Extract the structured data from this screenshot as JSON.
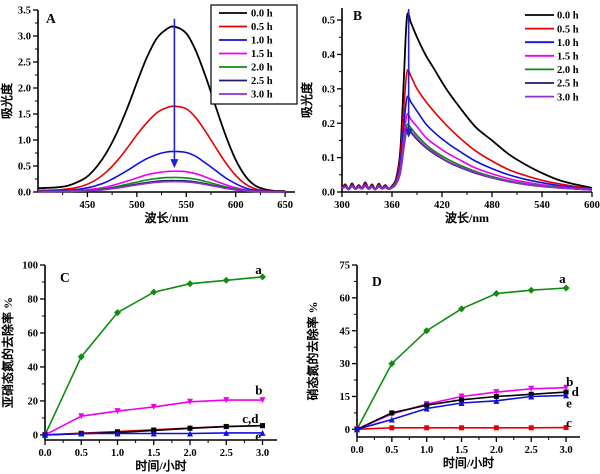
{
  "figure": {
    "background": "#ffffff",
    "arrow_color": "#2222cc",
    "axis_color": "#000000"
  },
  "chart_data": [
    {
      "id": "A",
      "type": "line",
      "panel_label": "A",
      "xlabel": "波长/nm",
      "ylabel": "吸光度",
      "xlim": [
        400,
        660
      ],
      "ylim": [
        0,
        3.5
      ],
      "xticks": {
        "major": [
          450,
          500,
          550,
          600,
          650
        ],
        "labels": [
          "450",
          "500",
          "550",
          "600",
          "650"
        ],
        "minor": [
          425,
          475,
          525,
          575,
          625
        ]
      },
      "yticks": {
        "major": [
          0,
          0.5,
          1,
          1.5,
          2,
          2.5,
          3,
          3.5
        ],
        "labels": [
          "0.0",
          "0.5",
          "1.0",
          "1.5",
          "2.0",
          "2.5",
          "3.0",
          "3.5"
        ],
        "minor": [
          0.25,
          0.75,
          1.25,
          1.75,
          2.25,
          2.75,
          3.25
        ]
      },
      "legend": {
        "show": true,
        "border": true
      },
      "arrow": {
        "x": 538,
        "y_from": 3.33,
        "y_to": 0.46
      },
      "smooth": true,
      "x": [
        400,
        410,
        420,
        430,
        440,
        450,
        460,
        470,
        480,
        490,
        500,
        510,
        520,
        530,
        538,
        550,
        560,
        570,
        580,
        590,
        600,
        610,
        620,
        630,
        640,
        650
      ],
      "series": [
        {
          "name": "0.0 h",
          "color": "#000000",
          "marker": null,
          "y": [
            0.075,
            0.08,
            0.09,
            0.12,
            0.19,
            0.3,
            0.5,
            0.78,
            1.15,
            1.6,
            2.1,
            2.58,
            2.95,
            3.13,
            3.18,
            3.05,
            2.7,
            2.2,
            1.63,
            1.08,
            0.62,
            0.3,
            0.12,
            0.05,
            0.02,
            0.02
          ]
        },
        {
          "name": "0.5 h",
          "color": "#e80000",
          "marker": null,
          "y": [
            0.033,
            0.035,
            0.04,
            0.06,
            0.09,
            0.15,
            0.25,
            0.4,
            0.6,
            0.84,
            1.1,
            1.33,
            1.52,
            1.62,
            1.65,
            1.6,
            1.42,
            1.15,
            0.85,
            0.56,
            0.32,
            0.15,
            0.06,
            0.025,
            0.012,
            0.01
          ]
        },
        {
          "name": "1.0 h",
          "color": "#1010dd",
          "marker": null,
          "y": [
            0.019,
            0.02,
            0.025,
            0.035,
            0.05,
            0.08,
            0.13,
            0.2,
            0.3,
            0.41,
            0.53,
            0.64,
            0.72,
            0.77,
            0.78,
            0.76,
            0.68,
            0.55,
            0.41,
            0.27,
            0.16,
            0.075,
            0.03,
            0.015,
            0.008,
            0.006
          ]
        },
        {
          "name": "1.5 h",
          "color": "#ee00ee",
          "marker": null,
          "y": [
            0.011,
            0.012,
            0.015,
            0.02,
            0.028,
            0.042,
            0.065,
            0.1,
            0.15,
            0.21,
            0.27,
            0.33,
            0.37,
            0.395,
            0.4,
            0.39,
            0.35,
            0.285,
            0.21,
            0.14,
            0.082,
            0.04,
            0.017,
            0.008,
            0.005,
            0.004
          ]
        },
        {
          "name": "2.0 h",
          "color": "#0e8c0e",
          "marker": null,
          "y": [
            0.009,
            0.01,
            0.012,
            0.015,
            0.02,
            0.03,
            0.046,
            0.07,
            0.105,
            0.148,
            0.19,
            0.23,
            0.26,
            0.276,
            0.28,
            0.272,
            0.245,
            0.2,
            0.148,
            0.098,
            0.058,
            0.028,
            0.012,
            0.006,
            0.004,
            0.003
          ]
        },
        {
          "name": "2.5 h",
          "color": "#1c1c6b",
          "marker": null,
          "y": [
            0.008,
            0.008,
            0.01,
            0.012,
            0.016,
            0.024,
            0.036,
            0.055,
            0.082,
            0.116,
            0.15,
            0.18,
            0.205,
            0.217,
            0.22,
            0.214,
            0.192,
            0.157,
            0.116,
            0.077,
            0.045,
            0.022,
            0.009,
            0.005,
            0.003,
            0.002
          ]
        },
        {
          "name": "3.0 h",
          "color": "#9030d0",
          "marker": null,
          "y": [
            0.007,
            0.007,
            0.009,
            0.011,
            0.015,
            0.022,
            0.033,
            0.05,
            0.075,
            0.106,
            0.137,
            0.165,
            0.187,
            0.198,
            0.2,
            0.195,
            0.175,
            0.143,
            0.106,
            0.07,
            0.041,
            0.02,
            0.008,
            0.004,
            0.003,
            0.002
          ]
        }
      ],
      "point_labels": []
    },
    {
      "id": "B",
      "type": "line",
      "panel_label": "B",
      "xlabel": "波长/nm",
      "ylabel": "吸光度",
      "xlim": [
        300,
        600
      ],
      "ylim": [
        0,
        0.535
      ],
      "xticks": {
        "major": [
          300,
          360,
          420,
          480,
          540,
          600
        ],
        "labels": [
          "300",
          "360",
          "420",
          "480",
          "540",
          "600"
        ],
        "minor": [
          330,
          390,
          450,
          510,
          570
        ]
      },
      "yticks": {
        "major": [
          0,
          0.1,
          0.2,
          0.3,
          0.4,
          0.5
        ],
        "labels": [
          "0.0",
          "0.1",
          "0.2",
          "0.3",
          "0.4",
          "0.5"
        ],
        "minor": [
          0.05,
          0.15,
          0.25,
          0.35,
          0.45
        ]
      },
      "legend": {
        "show": true,
        "border": false
      },
      "arrow": {
        "x": 380,
        "y_from": 0.532,
        "y_to": 0.158
      },
      "smooth": true,
      "x": [
        300,
        304,
        308,
        312,
        316,
        320,
        324,
        328,
        332,
        336,
        340,
        344,
        348,
        352,
        356,
        360,
        365,
        370,
        374,
        378,
        383,
        390,
        400,
        410,
        425,
        440,
        460,
        480,
        500,
        520,
        540,
        560,
        580,
        600
      ],
      "series": [
        {
          "name": "0.0 h",
          "color": "#000000",
          "marker": null,
          "y": [
            0.012,
            0.022,
            0.008,
            0.025,
            0.01,
            0.02,
            0.012,
            0.028,
            0.01,
            0.022,
            0.008,
            0.024,
            0.012,
            0.02,
            0.01,
            0.018,
            0.04,
            0.12,
            0.32,
            0.51,
            0.49,
            0.45,
            0.4,
            0.36,
            0.3,
            0.25,
            0.19,
            0.15,
            0.11,
            0.08,
            0.055,
            0.035,
            0.022,
            0.012
          ]
        },
        {
          "name": "0.5 h",
          "color": "#e80000",
          "marker": null,
          "y": [
            0.012,
            0.02,
            0.008,
            0.022,
            0.01,
            0.018,
            0.012,
            0.025,
            0.01,
            0.02,
            0.008,
            0.022,
            0.012,
            0.018,
            0.01,
            0.016,
            0.035,
            0.1,
            0.24,
            0.35,
            0.335,
            0.3,
            0.265,
            0.235,
            0.195,
            0.16,
            0.12,
            0.09,
            0.065,
            0.048,
            0.034,
            0.024,
            0.016,
            0.01
          ]
        },
        {
          "name": "1.0 h",
          "color": "#1010dd",
          "marker": null,
          "y": [
            0.011,
            0.018,
            0.008,
            0.02,
            0.009,
            0.016,
            0.011,
            0.022,
            0.009,
            0.018,
            0.008,
            0.02,
            0.011,
            0.016,
            0.009,
            0.015,
            0.03,
            0.085,
            0.19,
            0.275,
            0.26,
            0.235,
            0.2,
            0.175,
            0.145,
            0.12,
            0.09,
            0.068,
            0.05,
            0.037,
            0.027,
            0.019,
            0.013,
            0.009
          ]
        },
        {
          "name": "1.5 h",
          "color": "#ee00ee",
          "marker": null,
          "y": [
            0.011,
            0.016,
            0.007,
            0.018,
            0.009,
            0.015,
            0.01,
            0.02,
            0.009,
            0.016,
            0.007,
            0.018,
            0.01,
            0.015,
            0.009,
            0.014,
            0.028,
            0.07,
            0.155,
            0.225,
            0.21,
            0.19,
            0.16,
            0.14,
            0.115,
            0.095,
            0.07,
            0.053,
            0.039,
            0.029,
            0.021,
            0.015,
            0.011,
            0.008
          ]
        },
        {
          "name": "2.0 h",
          "color": "#0e8c0e",
          "marker": null,
          "y": [
            0.01,
            0.015,
            0.007,
            0.017,
            0.008,
            0.014,
            0.01,
            0.018,
            0.008,
            0.015,
            0.007,
            0.016,
            0.01,
            0.014,
            0.008,
            0.013,
            0.025,
            0.06,
            0.135,
            0.195,
            0.185,
            0.165,
            0.14,
            0.12,
            0.098,
            0.08,
            0.06,
            0.045,
            0.033,
            0.024,
            0.018,
            0.013,
            0.009,
            0.007
          ]
        },
        {
          "name": "2.5 h",
          "color": "#1c1c6b",
          "marker": null,
          "y": [
            0.01,
            0.014,
            0.007,
            0.016,
            0.008,
            0.013,
            0.009,
            0.017,
            0.008,
            0.014,
            0.007,
            0.015,
            0.009,
            0.013,
            0.008,
            0.012,
            0.023,
            0.055,
            0.125,
            0.18,
            0.172,
            0.153,
            0.13,
            0.112,
            0.09,
            0.073,
            0.055,
            0.041,
            0.03,
            0.022,
            0.016,
            0.012,
            0.009,
            0.006
          ]
        },
        {
          "name": "3.0 h",
          "color": "#9030d0",
          "marker": null,
          "y": [
            0.01,
            0.015,
            0.007,
            0.016,
            0.008,
            0.014,
            0.009,
            0.017,
            0.008,
            0.014,
            0.007,
            0.015,
            0.009,
            0.013,
            0.008,
            0.013,
            0.024,
            0.057,
            0.128,
            0.185,
            0.176,
            0.157,
            0.133,
            0.115,
            0.092,
            0.075,
            0.057,
            0.042,
            0.031,
            0.023,
            0.017,
            0.012,
            0.009,
            0.006
          ]
        }
      ],
      "point_labels": []
    },
    {
      "id": "C",
      "type": "line",
      "panel_label": "C",
      "xlabel": "时间/小时",
      "ylabel": "亚硝态氮的去除率 %",
      "xlim": [
        0,
        3.2
      ],
      "ylim": [
        -3,
        100
      ],
      "xticks": {
        "major": [
          0,
          0.5,
          1,
          1.5,
          2,
          2.5,
          3
        ],
        "labels": [
          "0.0",
          "0.5",
          "1.0",
          "1.5",
          "2.0",
          "2.5",
          "3.0"
        ],
        "minor": [
          0.25,
          0.75,
          1.25,
          1.75,
          2.25,
          2.75
        ]
      },
      "yticks": {
        "major": [
          0,
          20,
          40,
          60,
          80,
          100
        ],
        "labels": [
          "0",
          "20",
          "40",
          "60",
          "80",
          "100"
        ],
        "minor": [
          10,
          30,
          50,
          70,
          90
        ]
      },
      "legend": null,
      "arrow": null,
      "smooth": false,
      "x": [
        0,
        0.5,
        1,
        1.5,
        2,
        2.5,
        3
      ],
      "series": [
        {
          "name": "a",
          "color": "#0e8c0e",
          "marker": "diamond",
          "y": [
            0,
            46,
            72,
            84,
            89,
            91,
            93
          ]
        },
        {
          "name": "b",
          "color": "#ee00ee",
          "marker": "triangle-down",
          "y": [
            0,
            11,
            14,
            16.5,
            19.5,
            20.5,
            20.5
          ]
        },
        {
          "name": "c",
          "color": "#e80000",
          "marker": "square",
          "y": [
            0,
            1,
            2,
            3,
            4,
            5,
            5.5
          ]
        },
        {
          "name": "d",
          "color": "#000000",
          "marker": "square",
          "y": [
            0,
            0.7,
            1.4,
            2.6,
            3.9,
            4.9,
            5.4
          ]
        },
        {
          "name": "e",
          "color": "#1010dd",
          "marker": "triangle-up",
          "y": [
            0,
            0.8,
            0.8,
            0.8,
            0.8,
            1.2,
            1.2
          ]
        }
      ],
      "point_labels": [
        {
          "text": "a",
          "x": 2.9,
          "y": 97
        },
        {
          "text": "b",
          "x": 2.9,
          "y": 26
        },
        {
          "text": "c,d",
          "x": 2.72,
          "y": 9.5
        },
        {
          "text": "e",
          "x": 2.9,
          "y": -1
        }
      ]
    },
    {
      "id": "D",
      "type": "line",
      "panel_label": "D",
      "xlabel": "时间/小时",
      "ylabel": "硝态氮的去除率 %",
      "xlim": [
        0,
        3.2
      ],
      "ylim": [
        -3.5,
        75
      ],
      "xticks": {
        "major": [
          0,
          0.5,
          1,
          1.5,
          2,
          2.5,
          3
        ],
        "labels": [
          "0.0",
          "0.5",
          "1.0",
          "1.5",
          "2.0",
          "2.5",
          "3.0"
        ],
        "minor": [
          0.25,
          0.75,
          1.25,
          1.75,
          2.25,
          2.75
        ]
      },
      "yticks": {
        "major": [
          0,
          15,
          30,
          45,
          60,
          75
        ],
        "labels": [
          "0",
          "15",
          "30",
          "45",
          "60",
          "75"
        ],
        "minor": [
          7.5,
          22.5,
          37.5,
          52.5,
          67.5
        ]
      },
      "legend": null,
      "arrow": null,
      "smooth": false,
      "x": [
        0,
        0.5,
        1,
        1.5,
        2,
        2.5,
        3
      ],
      "series": [
        {
          "name": "a",
          "color": "#0e8c0e",
          "marker": "diamond",
          "y": [
            0,
            30,
            45,
            55,
            62,
            63.5,
            64.5
          ]
        },
        {
          "name": "b",
          "color": "#ee00ee",
          "marker": "triangle-down",
          "y": [
            0,
            7,
            11.5,
            15,
            17,
            18.5,
            19
          ]
        },
        {
          "name": "c",
          "color": "#e80000",
          "marker": "square",
          "y": [
            0,
            0.7,
            0.7,
            0.7,
            0.7,
            0.7,
            0.8
          ]
        },
        {
          "name": "d",
          "color": "#000000",
          "marker": "square",
          "y": [
            0,
            7.5,
            11,
            13.5,
            15,
            16,
            17
          ]
        },
        {
          "name": "e",
          "color": "#1010dd",
          "marker": "triangle-up",
          "y": [
            0,
            4.5,
            9.5,
            12,
            13,
            15,
            15.5
          ]
        }
      ],
      "point_labels": [
        {
          "text": "a",
          "x": 2.9,
          "y": 68.5
        },
        {
          "text": "b",
          "x": 3.0,
          "y": 21.5
        },
        {
          "text": "d",
          "x": 3.08,
          "y": 17
        },
        {
          "text": "e",
          "x": 3.0,
          "y": 11.8
        },
        {
          "text": "c",
          "x": 3.0,
          "y": 3
        }
      ]
    }
  ]
}
